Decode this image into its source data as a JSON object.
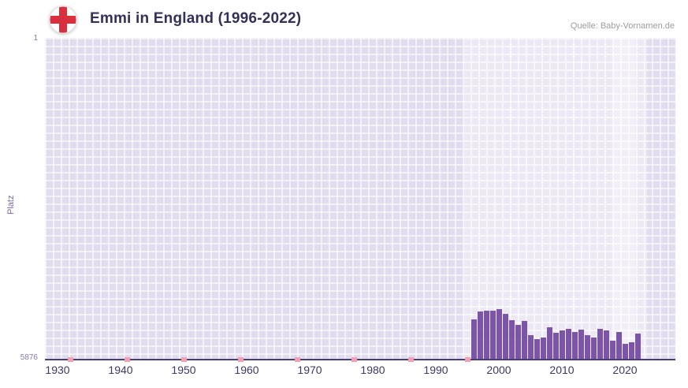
{
  "header": {
    "title": "Emmi in England (1996-2022)",
    "source": "Quelle: Baby-Vornamen.de",
    "flag_icon": "england-flag"
  },
  "axis": {
    "y_label": "Platz",
    "y_top_tick": "1",
    "y_bottom_tick": "5876"
  },
  "colors": {
    "bar": "#7d55a8",
    "no_rank_marker": "#f2a0b4",
    "grid_background": "#e1dcee",
    "axis_line": "#4a3e7a",
    "title_text": "#33305a",
    "flag_cross_red": "#d8303f"
  },
  "chart_data": {
    "type": "bar",
    "title": "Emmi in England (1996-2022)",
    "source": "Quelle: Baby-Vornamen.de",
    "xlabel": "",
    "ylabel": "Platz",
    "y_axis_inverted": true,
    "ylim": [
      1,
      5876
    ],
    "xlim": [
      1928,
      2028
    ],
    "x_ticks": [
      1930,
      1940,
      1950,
      1960,
      1970,
      1980,
      1990,
      2000,
      2010,
      2020
    ],
    "y_ticks": [
      "1",
      "5876"
    ],
    "grid": true,
    "highlight_band": {
      "start": 1994.5,
      "end": 2023.5
    },
    "highlight_column": {
      "start": 2018.0,
      "end": 2021.6
    },
    "no_rank_marker_years": [
      1932,
      1941,
      1950,
      1959,
      1968,
      1977,
      1986,
      1995
    ],
    "x": [
      1996,
      1997,
      1998,
      1999,
      2000,
      2001,
      2002,
      2003,
      2004,
      2005,
      2006,
      2007,
      2008,
      2009,
      2010,
      2011,
      2012,
      2013,
      2014,
      2015,
      2016,
      2017,
      2018,
      2019,
      2020,
      2021,
      2022
    ],
    "values": [
      5150,
      5010,
      4990,
      5000,
      4960,
      5060,
      5170,
      5260,
      5180,
      5450,
      5510,
      5480,
      5300,
      5400,
      5360,
      5330,
      5390,
      5340,
      5450,
      5480,
      5330,
      5360,
      5540,
      5390,
      5600,
      5580,
      5410
    ],
    "bar_color": "#7d55a8",
    "marker_color": "#f2a0b4"
  }
}
